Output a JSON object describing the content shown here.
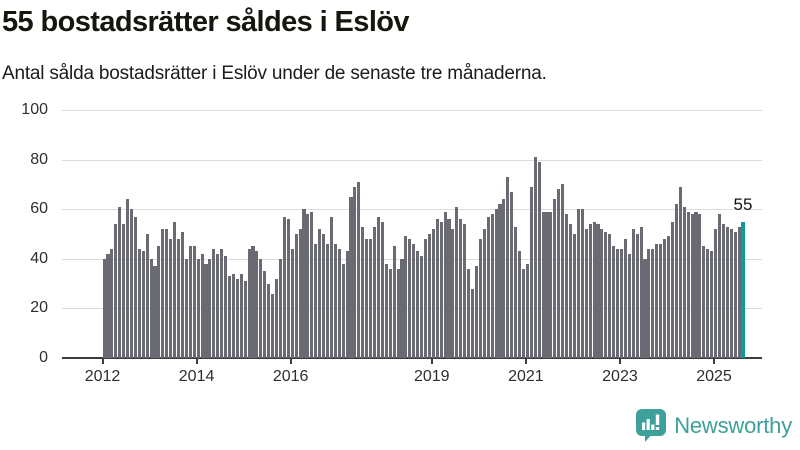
{
  "header": {
    "title": "55 bostadsrätter såldes i Eslöv",
    "subtitle": "Antal sålda bostadsrätter i Eslöv under de senaste tre månaderna."
  },
  "chart_data": {
    "type": "bar",
    "title": "55 bostadsrätter såldes i Eslöv",
    "subtitle": "Antal sålda bostadsrätter i Eslöv under de senaste tre månaderna.",
    "x_unit": "month",
    "x_start_year": 2012,
    "values": [
      40,
      42,
      44,
      54,
      61,
      54,
      64,
      60,
      57,
      44,
      43,
      50,
      40,
      37,
      45,
      52,
      52,
      48,
      55,
      48,
      51,
      40,
      45,
      45,
      40,
      42,
      38,
      40,
      44,
      42,
      44,
      41,
      33,
      34,
      32,
      34,
      31,
      44,
      45,
      43,
      40,
      35,
      30,
      26,
      32,
      40,
      57,
      56,
      44,
      50,
      52,
      60,
      58,
      59,
      46,
      52,
      50,
      46,
      57,
      46,
      44,
      38,
      43,
      65,
      69,
      71,
      53,
      48,
      48,
      53,
      57,
      55,
      38,
      36,
      45,
      36,
      40,
      49,
      48,
      46,
      43,
      41,
      48,
      50,
      52,
      56,
      55,
      59,
      56,
      52,
      61,
      56,
      54,
      36,
      28,
      37,
      48,
      52,
      57,
      58,
      60,
      62,
      64,
      73,
      67,
      53,
      43,
      36,
      38,
      69,
      81,
      79,
      59,
      59,
      59,
      64,
      68,
      70,
      58,
      54,
      50,
      60,
      60,
      52,
      54,
      55,
      54,
      52,
      51,
      50,
      45,
      44,
      44,
      48,
      42,
      52,
      50,
      53,
      40,
      44,
      44,
      46,
      46,
      48,
      49,
      55,
      62,
      69,
      61,
      59,
      58,
      59,
      58,
      45,
      44,
      43,
      52,
      58,
      54,
      53,
      52,
      51,
      53,
      55
    ],
    "ylim": [
      0,
      100
    ],
    "yticks": [
      0,
      20,
      40,
      60,
      80,
      100
    ],
    "xtick_years": [
      2012,
      2014,
      2016,
      2019,
      2021,
      2023,
      2025
    ],
    "xtick_labels": [
      "2012",
      "2014",
      "2016",
      "2019",
      "2021",
      "2023",
      "2025"
    ],
    "grid": true,
    "legend": false,
    "bar_color": "#6a6a72",
    "highlight": {
      "index_from_end": 1,
      "value": 55,
      "label": "55",
      "color": "#109b9b"
    }
  },
  "branding": {
    "name": "Newsworthy",
    "color": "#3da09a",
    "icon": "newsworthy-speech-bubble-chart-icon"
  }
}
